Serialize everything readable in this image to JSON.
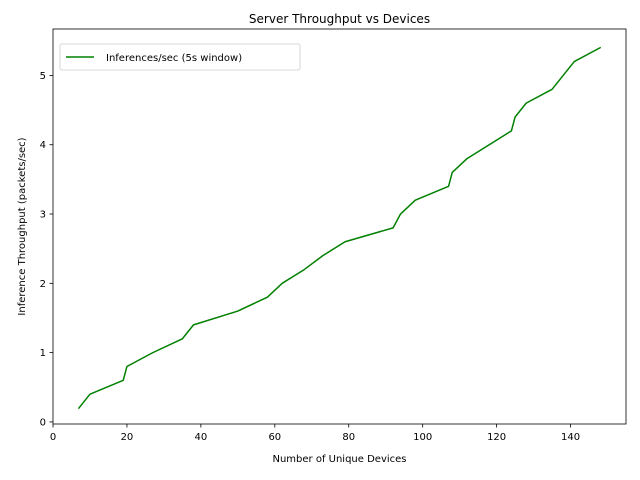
{
  "chart_data": {
    "type": "line",
    "title": "Server Throughput vs Devices",
    "xlabel": "Number of Unique Devices",
    "ylabel": "Inference Throughput (packets/sec)",
    "xlim": [
      0,
      155
    ],
    "ylim": [
      -0.03,
      5.67
    ],
    "xticks": [
      0,
      20,
      40,
      60,
      80,
      100,
      120,
      140
    ],
    "yticks": [
      0,
      1,
      2,
      3,
      4,
      5
    ],
    "grid": false,
    "legend_position": "top-left",
    "series": [
      {
        "name": "Inferences/sec (5s window)",
        "color": "#008000",
        "x": [
          7,
          10,
          19,
          20,
          27,
          35,
          38,
          50,
          58,
          62,
          68,
          73,
          79,
          92,
          94,
          98,
          107,
          108,
          112,
          124,
          125,
          128,
          135,
          141,
          148
        ],
        "y": [
          0.2,
          0.4,
          0.6,
          0.8,
          1.0,
          1.2,
          1.4,
          1.6,
          1.8,
          2.0,
          2.2,
          2.4,
          2.6,
          2.8,
          3.0,
          3.2,
          3.4,
          3.6,
          3.8,
          4.2,
          4.4,
          4.6,
          4.8,
          5.2,
          5.4
        ]
      }
    ]
  }
}
